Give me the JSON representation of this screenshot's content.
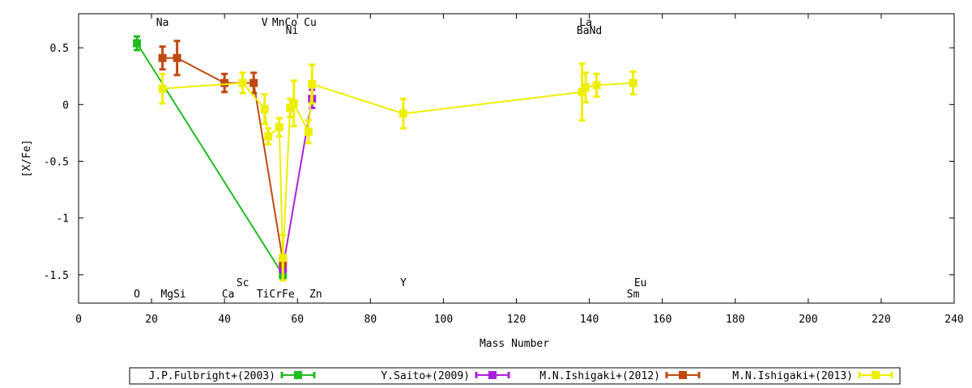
{
  "chart_data": {
    "type": "line",
    "xlabel": "Mass Number",
    "ylabel": "[X/Fe]",
    "xlim": [
      0,
      240
    ],
    "ylim": [
      -1.75,
      0.8
    ],
    "xticks": [
      0,
      20,
      40,
      60,
      80,
      100,
      120,
      140,
      160,
      180,
      200,
      220,
      240
    ],
    "xtick_labels": [
      "0",
      "20",
      "40",
      "60",
      "80",
      "100",
      "120",
      "140",
      "160",
      "180",
      "200",
      "220",
      "240"
    ],
    "yticks": [
      0.5,
      0,
      -0.5,
      -1,
      -1.5
    ],
    "ytick_labels": [
      "0.5",
      "0",
      "-0.5",
      "-1",
      "-1.5"
    ],
    "grid": false,
    "legend_position": "bottom",
    "element_labels": [
      {
        "text": "Na",
        "x": 23,
        "row": "top1"
      },
      {
        "text": "V",
        "x": 51,
        "row": "top1"
      },
      {
        "text": "MnCo",
        "x": 56.5,
        "row": "top1"
      },
      {
        "text": "Cu",
        "x": 63.5,
        "row": "top1"
      },
      {
        "text": "Ni",
        "x": 58.5,
        "row": "top2"
      },
      {
        "text": "La",
        "x": 139,
        "row": "top1"
      },
      {
        "text": "BaNd",
        "x": 140,
        "row": "top2"
      },
      {
        "text": "O",
        "x": 16,
        "row": "bot2"
      },
      {
        "text": "MgSi",
        "x": 26,
        "row": "bot2"
      },
      {
        "text": "Ca",
        "x": 41,
        "row": "bot2"
      },
      {
        "text": "TiCrFe",
        "x": 54,
        "row": "bot2"
      },
      {
        "text": "Zn",
        "x": 65,
        "row": "bot2"
      },
      {
        "text": "Sc",
        "x": 45,
        "row": "bot1"
      },
      {
        "text": "Y",
        "x": 89,
        "row": "bot1"
      },
      {
        "text": "Eu",
        "x": 154,
        "row": "bot1"
      },
      {
        "text": "Sm",
        "x": 152,
        "row": "bot2"
      }
    ],
    "series": [
      {
        "name": "J.P.Fulbright+(2003)",
        "color": "#22bb22",
        "x": [
          16,
          56
        ],
        "y": [
          0.54,
          -1.5
        ],
        "err": [
          0.06,
          0.03
        ]
      },
      {
        "name": "Y.Saito+(2009)",
        "color": "#aa22dd",
        "x": [
          56,
          64
        ],
        "y": [
          -1.44,
          0.05
        ],
        "err": [
          0.04,
          0.08
        ]
      },
      {
        "name": "M.N.Ishigaki+(2012)",
        "color": "#c04a10",
        "x": [
          23,
          27,
          40,
          48,
          56
        ],
        "y": [
          0.41,
          0.41,
          0.19,
          0.19,
          -1.38
        ],
        "err": [
          0.1,
          0.15,
          0.08,
          0.09,
          0.05
        ]
      },
      {
        "name": "M.N.Ishigaki+(2013)",
        "color": "#eeee00",
        "x": [
          23,
          45,
          51,
          52,
          55,
          56,
          58,
          59,
          63,
          64,
          89,
          138,
          139,
          142,
          152
        ],
        "y": [
          0.14,
          0.19,
          -0.04,
          -0.28,
          -0.2,
          -1.35,
          -0.03,
          0.01,
          -0.24,
          0.18,
          -0.08,
          0.11,
          0.15,
          0.17,
          0.19
        ],
        "err": [
          0.13,
          0.09,
          0.13,
          0.07,
          0.08,
          0.2,
          0.08,
          0.2,
          0.1,
          0.17,
          0.13,
          0.25,
          0.13,
          0.1,
          0.1
        ]
      }
    ]
  }
}
